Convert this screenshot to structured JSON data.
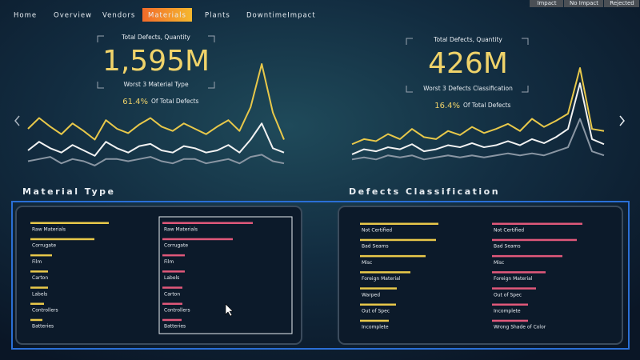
{
  "nav": {
    "tabs": [
      "Home",
      "Overview",
      "Vendors",
      "Materials",
      "Plants",
      "DowntimeImpact"
    ],
    "active": 3
  },
  "filters": [
    "Impact",
    "No Impact",
    "Rejected"
  ],
  "kpis": [
    {
      "label": "Total Defects, Quantity",
      "value": "1,595M",
      "subtitle": "Worst 3 Material Type",
      "share": "61.4%",
      "share_label": "Of Total Defects",
      "series": [
        {
          "color": "#e8c84a",
          "values": [
            40,
            50,
            42,
            35,
            45,
            38,
            30,
            48,
            40,
            36,
            44,
            50,
            42,
            38,
            45,
            40,
            35,
            42,
            48,
            38,
            60,
            100,
            55,
            30
          ]
        },
        {
          "color": "#f2f2f2",
          "values": [
            20,
            28,
            22,
            18,
            25,
            20,
            15,
            28,
            22,
            18,
            24,
            26,
            20,
            18,
            24,
            22,
            18,
            20,
            25,
            18,
            30,
            45,
            22,
            18
          ]
        },
        {
          "color": "#8a96a3",
          "values": [
            10,
            12,
            14,
            8,
            12,
            10,
            6,
            12,
            12,
            10,
            12,
            14,
            10,
            8,
            12,
            12,
            8,
            10,
            12,
            8,
            14,
            16,
            10,
            8
          ]
        }
      ]
    },
    {
      "label": "Total Defects, Quantity",
      "value": "426M",
      "subtitle": "Worst 3 Defects Classification",
      "share": "16.4%",
      "share_label": "Of Total Defects",
      "series": [
        {
          "color": "#e8c84a",
          "values": [
            25,
            30,
            28,
            35,
            30,
            40,
            32,
            30,
            38,
            34,
            42,
            36,
            40,
            45,
            38,
            50,
            42,
            48,
            55,
            100,
            40,
            38
          ]
        },
        {
          "color": "#f2f2f2",
          "values": [
            15,
            20,
            18,
            22,
            20,
            25,
            18,
            20,
            24,
            22,
            26,
            22,
            24,
            28,
            24,
            30,
            26,
            32,
            40,
            85,
            30,
            25
          ]
        },
        {
          "color": "#8a96a3",
          "values": [
            10,
            12,
            10,
            14,
            12,
            14,
            10,
            12,
            14,
            12,
            14,
            12,
            14,
            16,
            14,
            16,
            14,
            18,
            22,
            50,
            18,
            14
          ]
        }
      ]
    }
  ],
  "sections": [
    {
      "title": "Material Type",
      "lists": [
        {
          "color": "#e8c84a",
          "items": [
            {
              "label": "Raw Materials",
              "value": 98
            },
            {
              "label": "Corrugate",
              "value": 80
            },
            {
              "label": "Film",
              "value": 27
            },
            {
              "label": "Carton",
              "value": 22
            },
            {
              "label": "Labels",
              "value": 22
            },
            {
              "label": "Controllers",
              "value": 17
            },
            {
              "label": "Batteries",
              "value": 15
            }
          ]
        },
        {
          "color": "#e0587a",
          "items": [
            {
              "label": "Raw Materials",
              "value": 113
            },
            {
              "label": "Corrugate",
              "value": 88
            },
            {
              "label": "Film",
              "value": 28
            },
            {
              "label": "Labels",
              "value": 28
            },
            {
              "label": "Carton",
              "value": 25
            },
            {
              "label": "Controllers",
              "value": 25
            },
            {
              "label": "Batteries",
              "value": 24
            }
          ]
        }
      ]
    },
    {
      "title": "Defects Classification",
      "lists": [
        {
          "color": "#e8c84a",
          "items": [
            {
              "label": "Not Certified",
              "value": 98
            },
            {
              "label": "Bad Seams",
              "value": 95
            },
            {
              "label": "Misc",
              "value": 82
            },
            {
              "label": "Foreign Material",
              "value": 63
            },
            {
              "label": "Warped",
              "value": 46
            },
            {
              "label": "Out of Spec",
              "value": 45
            },
            {
              "label": "Incomplete",
              "value": 36
            }
          ]
        },
        {
          "color": "#e0587a",
          "items": [
            {
              "label": "Not Certified",
              "value": 113
            },
            {
              "label": "Bad Seams",
              "value": 106
            },
            {
              "label": "Misc",
              "value": 88
            },
            {
              "label": "Foreign Material",
              "value": 67
            },
            {
              "label": "Out of Spec",
              "value": 55
            },
            {
              "label": "Incomplete",
              "value": 45
            },
            {
              "label": "Wrong Shade of Color",
              "value": 45
            }
          ]
        }
      ]
    }
  ]
}
